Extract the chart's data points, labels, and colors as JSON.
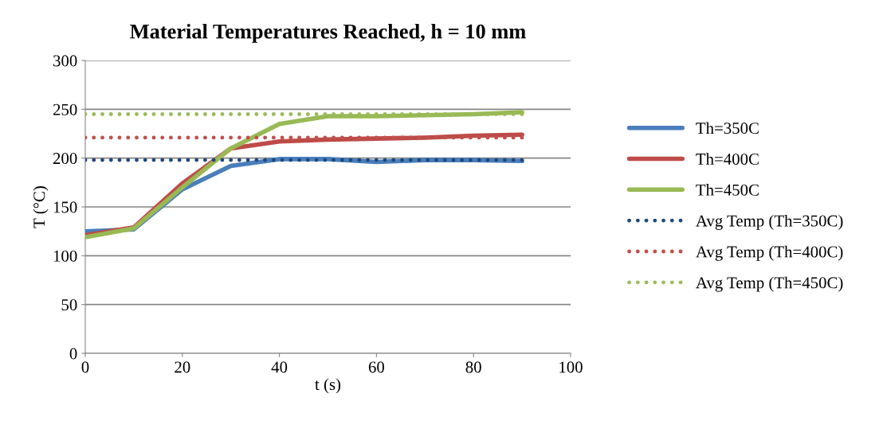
{
  "chart_data": {
    "type": "line",
    "title": "Material Temperatures Reached, h = 10 mm",
    "xlabel": "t (s)",
    "ylabel": "T (°C)",
    "x": [
      0,
      10,
      20,
      30,
      40,
      50,
      60,
      70,
      80,
      90
    ],
    "series": [
      {
        "name": "Th=350C",
        "color": "#4a7ebb",
        "values": [
          125,
          127,
          168,
          192,
          199,
          199,
          196,
          198,
          198,
          197
        ]
      },
      {
        "name": "Th=400C",
        "color": "#be4b48",
        "values": [
          121,
          129,
          174,
          210,
          217,
          219,
          220,
          221,
          223,
          224
        ]
      },
      {
        "name": "Th=450C",
        "color": "#98b954",
        "values": [
          119,
          128,
          170,
          210,
          235,
          243,
          243,
          244,
          245,
          247
        ]
      },
      {
        "name": "Avg Temp (Th=350C)",
        "color": "#1f497d",
        "line_style": "dotted",
        "values": [
          198,
          198,
          198,
          198,
          198,
          198,
          198,
          198,
          198,
          198
        ]
      },
      {
        "name": "Avg Temp (Th=400C)",
        "color": "#c0504d",
        "line_style": "dotted",
        "values": [
          221,
          221,
          221,
          221,
          221,
          221,
          221,
          221,
          221,
          221
        ]
      },
      {
        "name": "Avg Temp (Th=450C)",
        "color": "#9bbb59",
        "line_style": "dotted",
        "values": [
          245,
          245,
          245,
          245,
          245,
          245,
          245,
          245,
          245,
          245
        ]
      }
    ],
    "xlim": [
      0,
      100
    ],
    "xticks": [
      0,
      20,
      40,
      60,
      80,
      100
    ],
    "ylim": [
      0,
      300
    ],
    "yticks": [
      0,
      50,
      100,
      150,
      200,
      250,
      300
    ],
    "grid": "y",
    "legend": "right",
    "line_style": "solid",
    "marker": "none"
  }
}
